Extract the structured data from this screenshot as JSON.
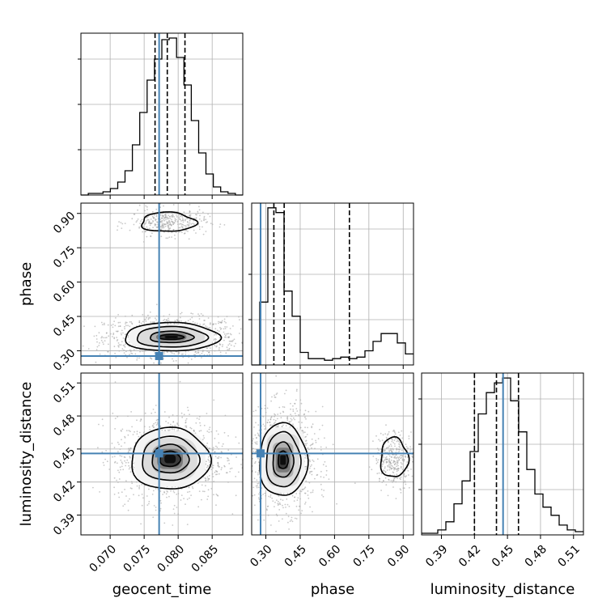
{
  "chart_data": {
    "type": "corner",
    "parameters": [
      "geocent_time",
      "phase",
      "luminosity_distance"
    ],
    "xlabels": {
      "geocent_time": "geocent_time",
      "phase": "phase",
      "luminosity_distance": "luminosity_distance"
    },
    "ylabels": {
      "phase": "phase",
      "luminosity_distance": "luminosity_distance"
    },
    "ranges": {
      "geocent_time": [
        0.0657,
        0.0895
      ],
      "phase": [
        0.238,
        0.945
      ],
      "luminosity_distance": [
        0.372,
        0.519
      ]
    },
    "ticks": {
      "geocent_time": {
        "values": [
          0.07,
          0.075,
          0.08,
          0.085
        ],
        "labels": [
          "0.070",
          "0.075",
          "0.080",
          "0.085"
        ]
      },
      "phase": {
        "values": [
          0.3,
          0.45,
          0.6,
          0.75,
          0.9
        ],
        "labels": [
          "0.30",
          "0.45",
          "0.60",
          "0.75",
          "0.90"
        ]
      },
      "luminosity_distance": {
        "values": [
          0.39,
          0.42,
          0.45,
          0.48,
          0.51
        ],
        "labels": [
          "0.39",
          "0.42",
          "0.45",
          "0.48",
          "0.51"
        ]
      }
    },
    "truths": {
      "geocent_time": 0.0772,
      "phase": 0.277,
      "luminosity_distance": 0.446
    },
    "truth_color": "#4682b4",
    "quantiles": {
      "geocent_time": [
        0.0766,
        0.0784,
        0.081
      ],
      "phase": [
        0.335,
        0.38,
        0.665
      ],
      "luminosity_distance": [
        0.42,
        0.44,
        0.46
      ]
    },
    "histograms": {
      "geocent_time": {
        "edges_min": 0.0657,
        "edges_max": 0.0895,
        "counts": [
          0,
          1,
          1,
          2,
          4,
          8,
          15,
          31,
          51,
          71,
          84,
          96,
          97,
          85,
          68,
          46,
          26,
          13,
          5,
          2,
          1,
          0
        ]
      },
      "phase": {
        "edges_min": 0.238,
        "edges_max": 0.945,
        "counts": [
          0,
          40,
          100,
          97,
          47,
          31,
          8,
          4,
          4,
          3,
          4,
          5,
          4,
          5,
          9,
          15,
          20,
          20,
          14,
          7
        ]
      },
      "luminosity_distance": {
        "edges_min": 0.372,
        "edges_max": 0.519,
        "counts": [
          1,
          1,
          3,
          8,
          19,
          33,
          51,
          74,
          87,
          93,
          96,
          82,
          63,
          40,
          25,
          17,
          12,
          6,
          3,
          2
        ]
      }
    },
    "histogram_max": {
      "geocent_time": 100,
      "phase": 103,
      "luminosity_distance": 99
    },
    "contours_2d": [
      {
        "x": "geocent_time",
        "y": "phase",
        "modes": [
          {
            "cx": 0.079,
            "cy": 0.36,
            "levels": [
              [
                0.0018,
                0.011
              ],
              [
                0.0032,
                0.025
              ],
              [
                0.0052,
                0.045
              ],
              [
                0.007,
                0.062
              ]
            ]
          },
          {
            "cx": 0.0785,
            "cy": 0.862,
            "levels": [
              [
                0.004,
                0.042
              ]
            ]
          }
        ]
      },
      {
        "x": "geocent_time",
        "y": "luminosity_distance",
        "modes": [
          {
            "cx": 0.0788,
            "cy": 0.441,
            "levels": [
              [
                0.0015,
                0.007
              ],
              [
                0.0027,
                0.013
              ],
              [
                0.0042,
                0.02
              ],
              [
                0.0058,
                0.028
              ]
            ]
          }
        ]
      },
      {
        "x": "phase",
        "y": "luminosity_distance",
        "modes": [
          {
            "cx": 0.375,
            "cy": 0.44,
            "levels": [
              [
                0.022,
                0.008
              ],
              [
                0.045,
                0.016
              ],
              [
                0.075,
                0.025
              ],
              [
                0.105,
                0.033
              ]
            ]
          },
          {
            "cx": 0.86,
            "cy": 0.442,
            "levels": [
              [
                0.06,
                0.018
              ]
            ]
          }
        ]
      }
    ],
    "grid": true,
    "legend": "none"
  }
}
